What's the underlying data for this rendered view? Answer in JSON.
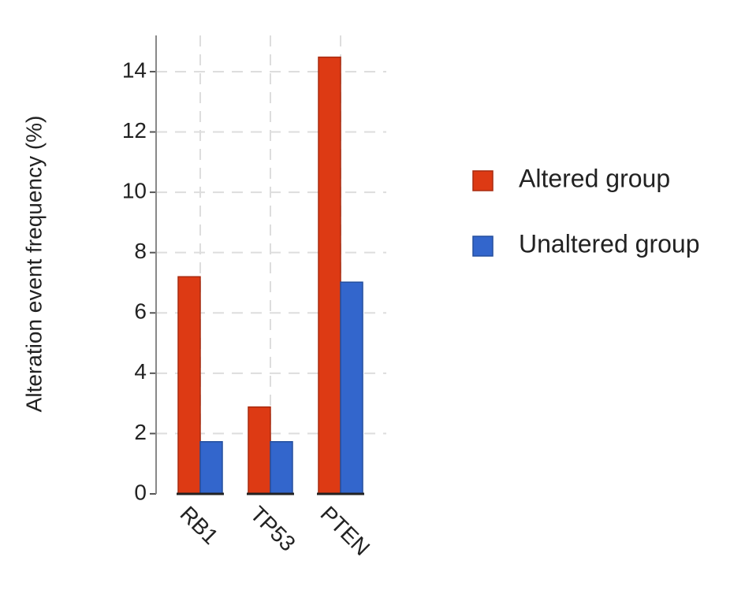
{
  "chart_data": {
    "type": "bar",
    "y_label": "Alteration event frequency (%)",
    "categories": [
      "RB1",
      "TP53",
      "PTEN"
    ],
    "series": [
      {
        "name": "Altered group",
        "color": "#dd3a14",
        "values": [
          7.2,
          2.88,
          14.48
        ]
      },
      {
        "name": "Unaltered group",
        "color": "#3366cc",
        "values": [
          1.73,
          1.73,
          7.02
        ]
      }
    ],
    "ylim": [
      0,
      15.2
    ],
    "yticks": [
      0,
      2,
      4,
      6,
      8,
      10,
      12,
      14
    ],
    "grid": true,
    "legend": "right"
  }
}
